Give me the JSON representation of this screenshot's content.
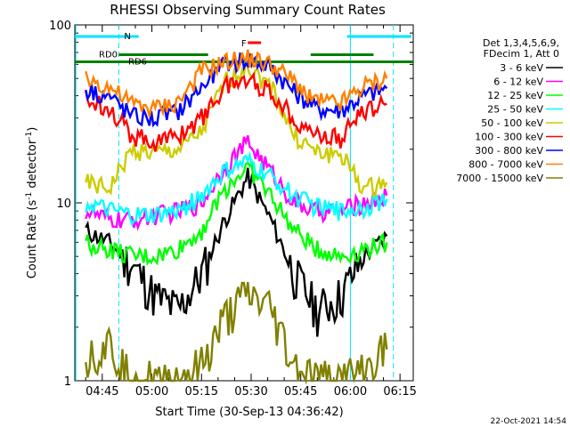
{
  "chart_data": {
    "type": "line",
    "title": "RHESSI Observing Summary Count Rates",
    "xlabel": "Start Time (30-Sep-13 04:36:42)",
    "ylabel_main": "Count Rate (s",
    "ylabel_sup": "-1",
    "ylabel_tail": " detector",
    "ylabel_sup2": "-1",
    "ylabel_close": ")",
    "y_scale": "log",
    "ylim": [
      1,
      100
    ],
    "y_ticks": [
      "1",
      "10",
      "100"
    ],
    "x_range_minutes": [
      "04:36:42",
      "06:19:00"
    ],
    "x_ticks": [
      "04:45",
      "05:00",
      "05:15",
      "05:30",
      "05:45",
      "06:00",
      "06:15"
    ],
    "footer_date": "22-Oct-2021 14:54",
    "legend_header": [
      "Det 1,3,4,5,6,9,",
      "FDecim 1, Att 0"
    ],
    "series": [
      {
        "name": "3 - 6 keV",
        "color": "#000000",
        "values": [
          7,
          6,
          4.5,
          3,
          2.5,
          4,
          8,
          14,
          8,
          4,
          2.5,
          3,
          5,
          6.5
        ]
      },
      {
        "name": "6 - 12 keV",
        "color": "#ff00ff",
        "values": [
          9,
          8,
          8,
          8.5,
          9,
          10,
          16,
          22,
          15,
          10,
          9,
          9,
          10,
          11
        ]
      },
      {
        "name": "12 - 25 keV",
        "color": "#00ff00",
        "values": [
          6,
          5.5,
          5,
          5,
          5.5,
          7,
          12,
          16,
          11,
          7,
          5.5,
          5,
          5.5,
          6
        ]
      },
      {
        "name": "25 - 50 keV",
        "color": "#00ffff",
        "values": [
          10,
          9,
          8.5,
          8.5,
          9,
          11,
          15,
          17,
          14,
          11,
          9.5,
          9,
          9.5,
          10.5
        ]
      },
      {
        "name": "50 - 100 keV",
        "color": "#cccc00",
        "values": [
          13,
          12,
          20,
          19,
          20,
          25,
          48,
          58,
          45,
          24,
          19,
          19,
          12,
          13
        ]
      },
      {
        "name": "100 - 300 keV",
        "color": "#ff0000",
        "values": [
          38,
          35,
          24,
          22,
          24,
          30,
          45,
          50,
          42,
          30,
          24,
          23,
          33,
          36
        ]
      },
      {
        "name": "300 - 800 keV",
        "color": "#0000ff",
        "values": [
          44,
          40,
          31,
          30,
          33,
          45,
          60,
          65,
          58,
          42,
          34,
          33,
          40,
          44
        ]
      },
      {
        "name": "800 - 7000 keV",
        "color": "#ff8000",
        "values": [
          50,
          45,
          36,
          34,
          37,
          55,
          62,
          65,
          60,
          48,
          37,
          36,
          45,
          50
        ]
      },
      {
        "name": "7000 - 15000 keV",
        "color": "#808000",
        "values": [
          1.4,
          1.6,
          1,
          1,
          1,
          1.2,
          2.2,
          3,
          2.5,
          1.2,
          1,
          1,
          1.1,
          1.5
        ]
      }
    ],
    "x": [
      "04:40",
      "04:47",
      "04:54",
      "05:01",
      "05:08",
      "05:15",
      "05:22",
      "05:29",
      "05:36",
      "05:43",
      "05:50",
      "05:57",
      "06:04",
      "06:11"
    ],
    "annotations": {
      "rd0": "RD0",
      "rd6": "RD6",
      "n": "N",
      "f": "F"
    }
  }
}
